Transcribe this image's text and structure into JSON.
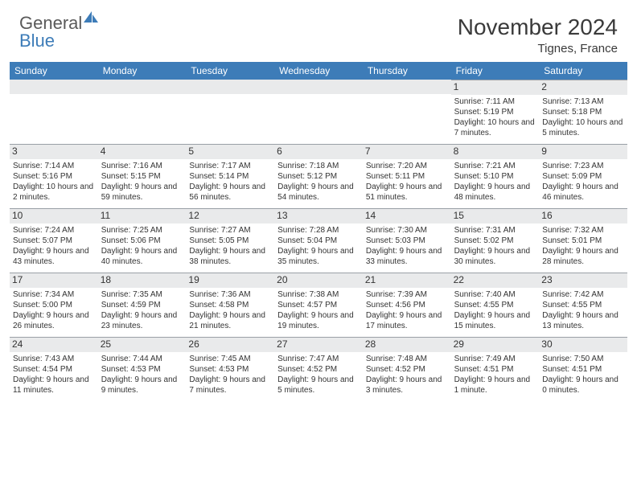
{
  "brand": {
    "word1": "General",
    "word2": "Blue"
  },
  "title": "November 2024",
  "location": "Tignes, France",
  "day_headers": [
    "Sunday",
    "Monday",
    "Tuesday",
    "Wednesday",
    "Thursday",
    "Friday",
    "Saturday"
  ],
  "colors": {
    "header_bg": "#3d7cb8",
    "header_text": "#ffffff",
    "daynum_bg": "#e9eaeb",
    "border": "#9aa0a6",
    "body_text": "#333333"
  },
  "weeks": [
    [
      null,
      null,
      null,
      null,
      null,
      {
        "n": "1",
        "sunrise": "Sunrise: 7:11 AM",
        "sunset": "Sunset: 5:19 PM",
        "daylight": "Daylight: 10 hours and 7 minutes."
      },
      {
        "n": "2",
        "sunrise": "Sunrise: 7:13 AM",
        "sunset": "Sunset: 5:18 PM",
        "daylight": "Daylight: 10 hours and 5 minutes."
      }
    ],
    [
      {
        "n": "3",
        "sunrise": "Sunrise: 7:14 AM",
        "sunset": "Sunset: 5:16 PM",
        "daylight": "Daylight: 10 hours and 2 minutes."
      },
      {
        "n": "4",
        "sunrise": "Sunrise: 7:16 AM",
        "sunset": "Sunset: 5:15 PM",
        "daylight": "Daylight: 9 hours and 59 minutes."
      },
      {
        "n": "5",
        "sunrise": "Sunrise: 7:17 AM",
        "sunset": "Sunset: 5:14 PM",
        "daylight": "Daylight: 9 hours and 56 minutes."
      },
      {
        "n": "6",
        "sunrise": "Sunrise: 7:18 AM",
        "sunset": "Sunset: 5:12 PM",
        "daylight": "Daylight: 9 hours and 54 minutes."
      },
      {
        "n": "7",
        "sunrise": "Sunrise: 7:20 AM",
        "sunset": "Sunset: 5:11 PM",
        "daylight": "Daylight: 9 hours and 51 minutes."
      },
      {
        "n": "8",
        "sunrise": "Sunrise: 7:21 AM",
        "sunset": "Sunset: 5:10 PM",
        "daylight": "Daylight: 9 hours and 48 minutes."
      },
      {
        "n": "9",
        "sunrise": "Sunrise: 7:23 AM",
        "sunset": "Sunset: 5:09 PM",
        "daylight": "Daylight: 9 hours and 46 minutes."
      }
    ],
    [
      {
        "n": "10",
        "sunrise": "Sunrise: 7:24 AM",
        "sunset": "Sunset: 5:07 PM",
        "daylight": "Daylight: 9 hours and 43 minutes."
      },
      {
        "n": "11",
        "sunrise": "Sunrise: 7:25 AM",
        "sunset": "Sunset: 5:06 PM",
        "daylight": "Daylight: 9 hours and 40 minutes."
      },
      {
        "n": "12",
        "sunrise": "Sunrise: 7:27 AM",
        "sunset": "Sunset: 5:05 PM",
        "daylight": "Daylight: 9 hours and 38 minutes."
      },
      {
        "n": "13",
        "sunrise": "Sunrise: 7:28 AM",
        "sunset": "Sunset: 5:04 PM",
        "daylight": "Daylight: 9 hours and 35 minutes."
      },
      {
        "n": "14",
        "sunrise": "Sunrise: 7:30 AM",
        "sunset": "Sunset: 5:03 PM",
        "daylight": "Daylight: 9 hours and 33 minutes."
      },
      {
        "n": "15",
        "sunrise": "Sunrise: 7:31 AM",
        "sunset": "Sunset: 5:02 PM",
        "daylight": "Daylight: 9 hours and 30 minutes."
      },
      {
        "n": "16",
        "sunrise": "Sunrise: 7:32 AM",
        "sunset": "Sunset: 5:01 PM",
        "daylight": "Daylight: 9 hours and 28 minutes."
      }
    ],
    [
      {
        "n": "17",
        "sunrise": "Sunrise: 7:34 AM",
        "sunset": "Sunset: 5:00 PM",
        "daylight": "Daylight: 9 hours and 26 minutes."
      },
      {
        "n": "18",
        "sunrise": "Sunrise: 7:35 AM",
        "sunset": "Sunset: 4:59 PM",
        "daylight": "Daylight: 9 hours and 23 minutes."
      },
      {
        "n": "19",
        "sunrise": "Sunrise: 7:36 AM",
        "sunset": "Sunset: 4:58 PM",
        "daylight": "Daylight: 9 hours and 21 minutes."
      },
      {
        "n": "20",
        "sunrise": "Sunrise: 7:38 AM",
        "sunset": "Sunset: 4:57 PM",
        "daylight": "Daylight: 9 hours and 19 minutes."
      },
      {
        "n": "21",
        "sunrise": "Sunrise: 7:39 AM",
        "sunset": "Sunset: 4:56 PM",
        "daylight": "Daylight: 9 hours and 17 minutes."
      },
      {
        "n": "22",
        "sunrise": "Sunrise: 7:40 AM",
        "sunset": "Sunset: 4:55 PM",
        "daylight": "Daylight: 9 hours and 15 minutes."
      },
      {
        "n": "23",
        "sunrise": "Sunrise: 7:42 AM",
        "sunset": "Sunset: 4:55 PM",
        "daylight": "Daylight: 9 hours and 13 minutes."
      }
    ],
    [
      {
        "n": "24",
        "sunrise": "Sunrise: 7:43 AM",
        "sunset": "Sunset: 4:54 PM",
        "daylight": "Daylight: 9 hours and 11 minutes."
      },
      {
        "n": "25",
        "sunrise": "Sunrise: 7:44 AM",
        "sunset": "Sunset: 4:53 PM",
        "daylight": "Daylight: 9 hours and 9 minutes."
      },
      {
        "n": "26",
        "sunrise": "Sunrise: 7:45 AM",
        "sunset": "Sunset: 4:53 PM",
        "daylight": "Daylight: 9 hours and 7 minutes."
      },
      {
        "n": "27",
        "sunrise": "Sunrise: 7:47 AM",
        "sunset": "Sunset: 4:52 PM",
        "daylight": "Daylight: 9 hours and 5 minutes."
      },
      {
        "n": "28",
        "sunrise": "Sunrise: 7:48 AM",
        "sunset": "Sunset: 4:52 PM",
        "daylight": "Daylight: 9 hours and 3 minutes."
      },
      {
        "n": "29",
        "sunrise": "Sunrise: 7:49 AM",
        "sunset": "Sunset: 4:51 PM",
        "daylight": "Daylight: 9 hours and 1 minute."
      },
      {
        "n": "30",
        "sunrise": "Sunrise: 7:50 AM",
        "sunset": "Sunset: 4:51 PM",
        "daylight": "Daylight: 9 hours and 0 minutes."
      }
    ]
  ]
}
